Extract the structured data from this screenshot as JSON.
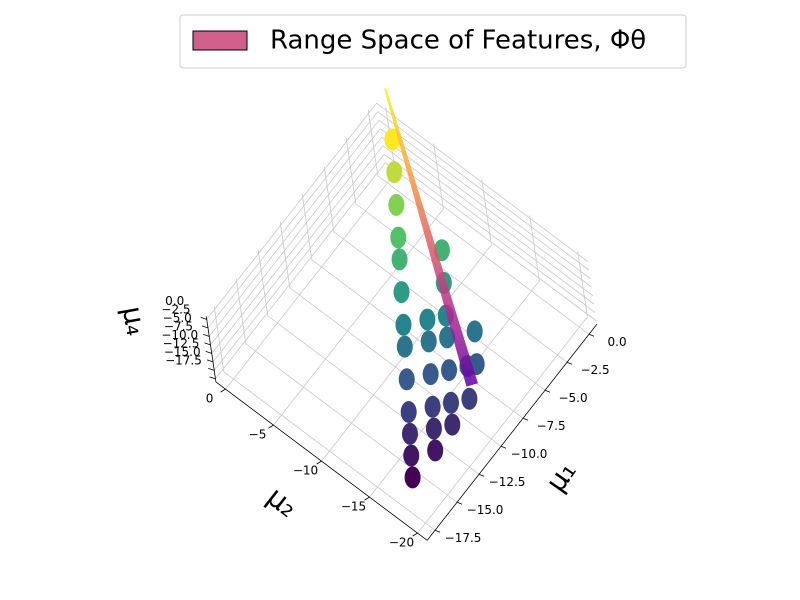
{
  "chart_data": {
    "type": "scatter3d",
    "xlabel": "μ₁",
    "ylabel": "μ₂",
    "zlabel": "μ₄",
    "xlim": [
      -18.4,
      0.9
    ],
    "ylim": [
      -21,
      1
    ],
    "zlim": [
      -18.4,
      0.9
    ],
    "xticks": [
      {
        "value": 0,
        "label": "0.0"
      },
      {
        "value": -2.5,
        "label": "−2.5"
      },
      {
        "value": -5,
        "label": "−5.0"
      },
      {
        "value": -7.5,
        "label": "−7.5"
      },
      {
        "value": -10,
        "label": "−10.0"
      },
      {
        "value": -12.5,
        "label": "−12.5"
      },
      {
        "value": -15,
        "label": "−15.0"
      },
      {
        "value": -17.5,
        "label": "−17.5"
      }
    ],
    "yticks": [
      0,
      {
        "value": -5,
        "label": "−5"
      },
      {
        "value": -10,
        "label": "−10"
      },
      {
        "value": -15,
        "label": "−15"
      },
      {
        "value": -20,
        "label": "−20"
      }
    ],
    "zticks": [
      {
        "value": 0,
        "label": "0.0"
      },
      {
        "value": -2.5,
        "label": "−2.5"
      },
      {
        "value": -5,
        "label": "−5.0"
      },
      {
        "value": -7.5,
        "label": "−7.5"
      },
      {
        "value": -10,
        "label": "−10.0"
      },
      {
        "value": -12.5,
        "label": "−12.5"
      },
      {
        "value": -15,
        "label": "−15.0"
      },
      {
        "value": -17.5,
        "label": "−17.5"
      }
    ],
    "grid": true,
    "colormap": "viridis",
    "points": {
      "x": [
        -0.3,
        -1.8,
        -3.3,
        -4.8,
        -5.8,
        -3.5,
        -7.3,
        -5,
        -8.8,
        -7.5,
        -6.5,
        -9.8,
        -8.5,
        -7.5,
        -6,
        -11.3,
        -10,
        -9,
        -8,
        -7.5,
        -12.8,
        -11.5,
        -10.5,
        -9.5,
        -13.8,
        -12.5,
        -11.5,
        -14.8,
        -13.5,
        -15.8
      ],
      "y": [
        -1.7,
        -3.2,
        -4.7,
        -6.2,
        -7.2,
        -9.5,
        -8.7,
        -11,
        -10.2,
        -11.5,
        -12.5,
        -11.2,
        -12.5,
        -13.5,
        -15,
        -12.7,
        -14,
        -15,
        -16,
        -16.5,
        -14.2,
        -15.5,
        -16.5,
        -17.5,
        -15.2,
        -16.5,
        -17.5,
        -16.2,
        -17.5,
        -17.2
      ],
      "z": [
        -1,
        -2.5,
        -4,
        -5.5,
        -6.5,
        -6.5,
        -8,
        -8,
        -9.5,
        -9.5,
        -9.5,
        -10.5,
        -10.5,
        -10.5,
        -10.5,
        -12,
        -12,
        -12,
        -12,
        -12,
        -13.5,
        -13.5,
        -13.5,
        -13.5,
        -14.5,
        -14.5,
        -14.5,
        -15.5,
        -15.5,
        -16.5
      ]
    },
    "surface": {
      "name": "Range Space of Features, Φθ",
      "color": "#d1608b",
      "x": [
        2.1,
        -9.2
      ],
      "y": [
        1.2,
        -17.7
      ],
      "z": [
        0,
        -10
      ]
    },
    "legend": "upper right"
  }
}
